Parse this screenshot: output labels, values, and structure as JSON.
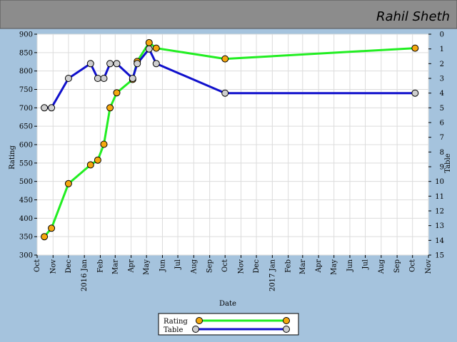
{
  "header": {
    "user_name": "Rahil Sheth"
  },
  "colors": {
    "background": "#a5c3dd",
    "header": "#8c8c8c",
    "plot": "#ffffff",
    "grid": "#dcdcdc",
    "rating_line": "#22ee22",
    "rating_marker": "#f5a80f",
    "table_line": "#1010cc",
    "table_marker": "#cfcfcf"
  },
  "chart_data": {
    "type": "line",
    "xlabel": "Date",
    "ylabel": "Rating",
    "y2label": "Table",
    "xlim": [
      "2015-10-01",
      "2017-11-01"
    ],
    "ylim": [
      300,
      900
    ],
    "y2lim": [
      0,
      15
    ],
    "y2_inverted": true,
    "grid": true,
    "legend_position": "bottom-center",
    "x_tick_labels": [
      "Oct",
      "Nov",
      "Dec",
      "2016 Jan",
      "Feb",
      "Mar",
      "Apr",
      "May",
      "Jun",
      "Jul",
      "Aug",
      "Sep",
      "Oct",
      "Nov",
      "Dec",
      "2017 Jan",
      "Feb",
      "Mar",
      "Apr",
      "May",
      "Jun",
      "Jul",
      "Aug",
      "Sep",
      "Oct",
      "Nov"
    ],
    "y_ticks": [
      300,
      350,
      400,
      450,
      500,
      550,
      600,
      650,
      700,
      750,
      800,
      850,
      900
    ],
    "y2_ticks": [
      0,
      1,
      2,
      3,
      4,
      5,
      6,
      7,
      8,
      9,
      10,
      11,
      12,
      13,
      14,
      15
    ],
    "series": [
      {
        "name": "Rating",
        "axis": "left",
        "x": [
          "2015-10-15",
          "2015-10-29",
          "2015-12-01",
          "2016-01-13",
          "2016-01-27",
          "2016-02-08",
          "2016-02-20",
          "2016-03-04",
          "2016-04-04",
          "2016-04-13",
          "2016-05-06",
          "2016-05-20",
          "2016-10-01",
          "2017-10-06"
        ],
        "values": [
          350,
          373,
          494,
          545,
          558,
          601,
          700,
          741,
          777,
          826,
          877,
          862,
          833,
          862
        ]
      },
      {
        "name": "Table",
        "axis": "right",
        "x": [
          "2015-10-15",
          "2015-10-29",
          "2015-12-01",
          "2016-01-13",
          "2016-01-27",
          "2016-02-08",
          "2016-02-20",
          "2016-03-04",
          "2016-04-04",
          "2016-04-13",
          "2016-05-06",
          "2016-05-20",
          "2016-10-01",
          "2017-10-06"
        ],
        "values": [
          5,
          5,
          3,
          2,
          3,
          3,
          2,
          2,
          3,
          2,
          1,
          2,
          4,
          4
        ]
      }
    ]
  }
}
